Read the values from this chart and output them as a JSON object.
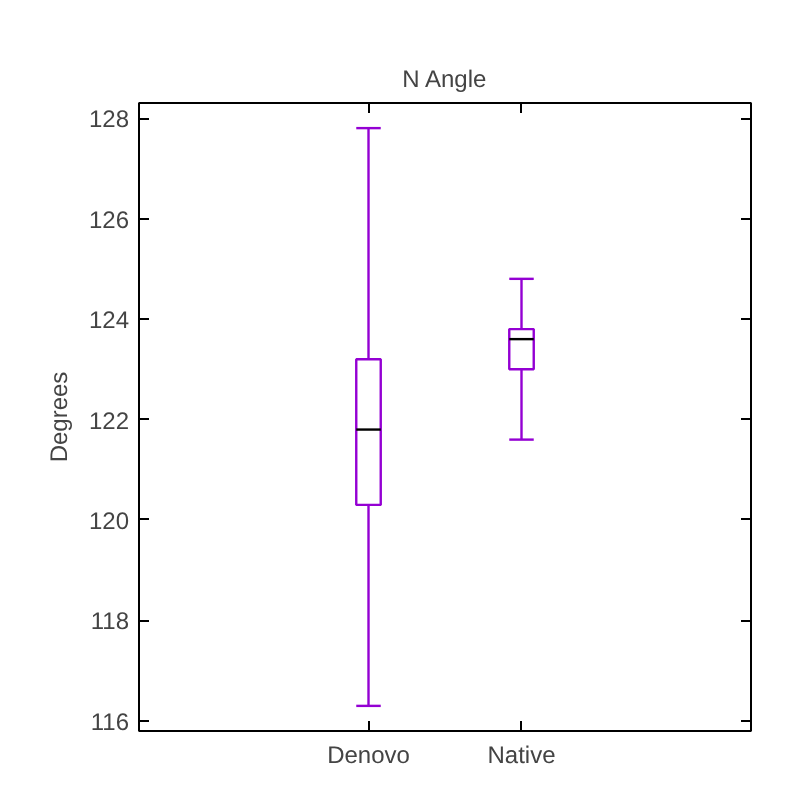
{
  "chart_data": {
    "type": "box",
    "title": "N Angle",
    "ylabel": "Degrees",
    "categories": [
      "Denovo",
      "Native"
    ],
    "color": "#9400d3",
    "boxes": [
      {
        "low": 116.3,
        "q1": 120.3,
        "median": 121.8,
        "q3": 123.2,
        "high": 127.8
      },
      {
        "low": 121.6,
        "q1": 123.0,
        "median": 123.6,
        "q3": 123.8,
        "high": 124.8
      }
    ],
    "ylim": [
      115.8,
      128.3
    ],
    "yticks": [
      116,
      118,
      120,
      122,
      124,
      126,
      128
    ],
    "grid": false
  }
}
